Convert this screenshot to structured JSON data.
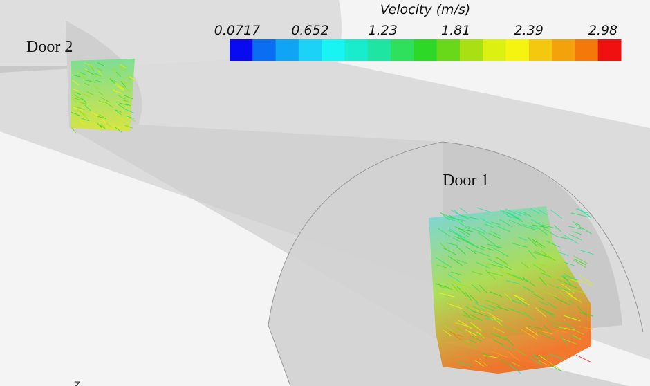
{
  "colorbar": {
    "title": "Velocity (m/s)",
    "ticks": [
      0.0717,
      0.652,
      1.23,
      1.81,
      2.39,
      2.98
    ],
    "colors": [
      "#0a0af0",
      "#0a6ef2",
      "#10a4f4",
      "#1cd2f6",
      "#18f4f2",
      "#18eccc",
      "#1ee6a2",
      "#2ee05c",
      "#2ed826",
      "#6ad81a",
      "#a8e014",
      "#dcf012",
      "#f4f410",
      "#f4c80e",
      "#f4a20c",
      "#f4780a",
      "#f01010"
    ]
  },
  "labels": {
    "door2": "Door 2",
    "door1": "Door 1",
    "axis": "Z"
  }
}
